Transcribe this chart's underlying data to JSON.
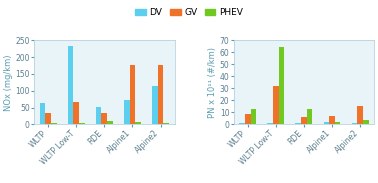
{
  "categories": [
    "WLTP",
    "WLTP Low-T",
    "RDE",
    "Alpine1",
    "Alpine2"
  ],
  "nox": {
    "DV": [
      65,
      232,
      52,
      72,
      113
    ],
    "GV": [
      35,
      68,
      35,
      177,
      178
    ],
    "PHEV": [
      5,
      5,
      9,
      7,
      5
    ]
  },
  "pn": {
    "DV": [
      1,
      1,
      1,
      2,
      1
    ],
    "GV": [
      9,
      32,
      6,
      7,
      15
    ],
    "PHEV": [
      13,
      64,
      13,
      2,
      4
    ]
  },
  "nox_ylim": [
    0,
    250
  ],
  "nox_yticks": [
    0,
    50,
    100,
    150,
    200,
    250
  ],
  "pn_ylim": [
    0,
    70
  ],
  "pn_yticks": [
    0,
    10,
    20,
    30,
    40,
    50,
    60,
    70
  ],
  "nox_ylabel": "NOx (mg/km)",
  "pn_ylabel": "PN x 10¹¹ (#/km)",
  "colors": {
    "DV": "#5bcfed",
    "GV": "#f07228",
    "PHEV": "#70c820"
  },
  "legend_labels": [
    "DV",
    "GV",
    "PHEV"
  ],
  "bar_width": 0.2,
  "fontsize_tick": 5.5,
  "fontsize_label": 6.0,
  "fontsize_legend": 6.5,
  "subplot_bg": "#e8f4f8",
  "fig_bg": "#ffffff"
}
